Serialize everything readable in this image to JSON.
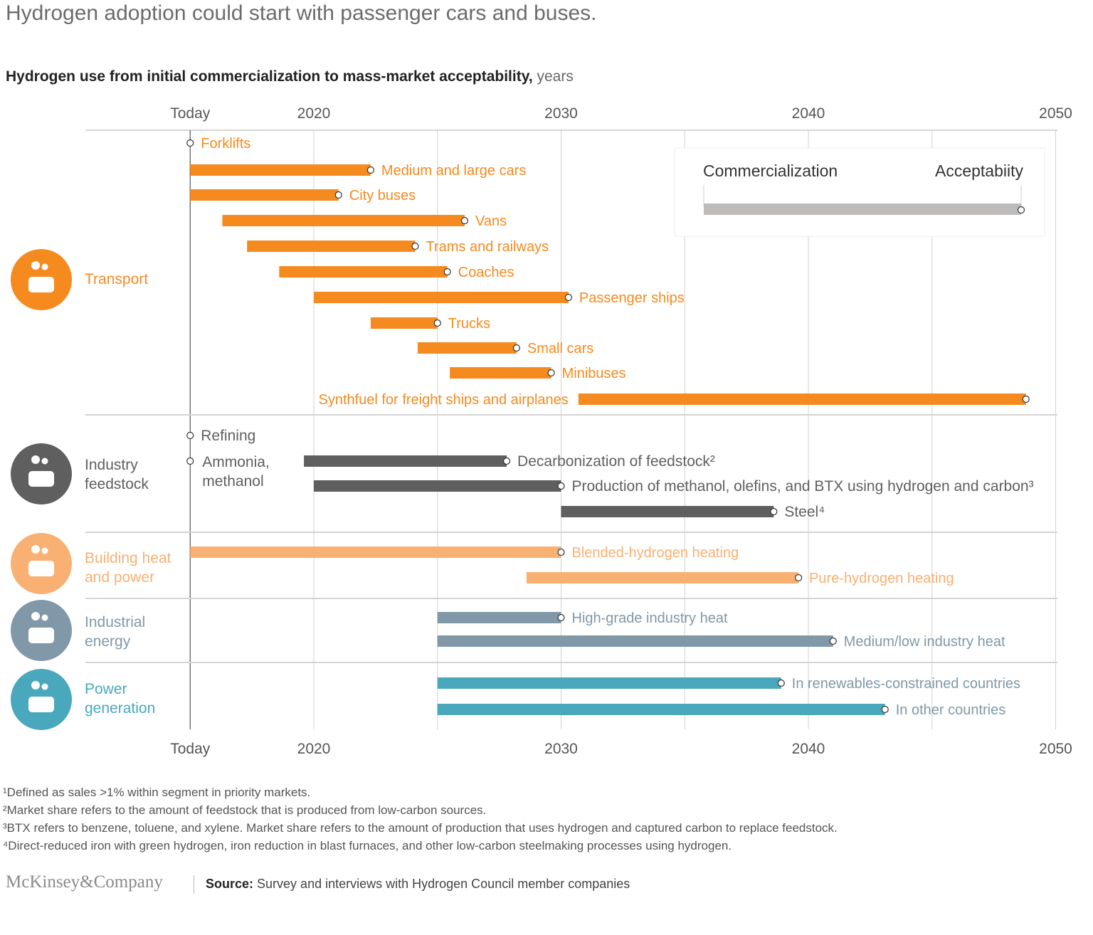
{
  "title": "Hydrogen adoption could start with passenger cars and buses.",
  "subtitle": {
    "main": "Hydrogen use from initial commercialization to mass-market acceptability,",
    "unit": " years"
  },
  "chart_data": {
    "type": "range-bar",
    "title": "Hydrogen use from initial commercialization to mass-market acceptability",
    "xlabel": "years",
    "xlim": [
      2011.5,
      2050
    ],
    "x_ticks": [
      {
        "value": 2015,
        "label": "Today"
      },
      {
        "value": 2020,
        "label": "2020"
      },
      {
        "value": 2030,
        "label": "2030"
      },
      {
        "value": 2040,
        "label": "2040"
      },
      {
        "value": 2050,
        "label": "2050"
      }
    ],
    "gridlines": [
      2020,
      2025,
      2030,
      2035,
      2040,
      2045,
      2050
    ],
    "legend": {
      "start_label": "Commercialization",
      "end_label": "Acceptabiity",
      "placement": "top-right",
      "color": "#bdbcbb"
    },
    "groups": [
      {
        "name": "Transport",
        "icon": "car-icon",
        "color": "#f58a1f",
        "text_color": "#f58a1f",
        "items": [
          {
            "label": "Forklifts",
            "start": 2015,
            "end": 2015,
            "label_pos": "right"
          },
          {
            "label": "Medium and large cars",
            "start": 2015,
            "end": 2022.3,
            "label_pos": "right"
          },
          {
            "label": "City buses",
            "start": 2015,
            "end": 2021.0,
            "label_pos": "right"
          },
          {
            "label": "Vans",
            "start": 2016.3,
            "end": 2026.1,
            "label_pos": "right"
          },
          {
            "label": "Trams and railways",
            "start": 2017.3,
            "end": 2024.1,
            "label_pos": "right"
          },
          {
            "label": "Coaches",
            "start": 2018.6,
            "end": 2025.4,
            "label_pos": "right"
          },
          {
            "label": "Passenger ships",
            "start": 2020.0,
            "end": 2030.3,
            "label_pos": "right"
          },
          {
            "label": "Trucks",
            "start": 2022.3,
            "end": 2025.0,
            "label_pos": "right"
          },
          {
            "label": "Small cars",
            "start": 2024.2,
            "end": 2028.2,
            "label_pos": "right"
          },
          {
            "label": "Minibuses",
            "start": 2025.5,
            "end": 2029.6,
            "label_pos": "right"
          },
          {
            "label": "Synthfuel for freight ships and airplanes",
            "start": 2030.7,
            "end": 2048.8,
            "label_pos": "left"
          }
        ]
      },
      {
        "name": "Industry feedstock",
        "icon": "refinery-icon",
        "color": "#5f5f5f",
        "text_color": "#5f5f5f",
        "items": [
          {
            "label": "Refining",
            "start": 2015,
            "end": 2015,
            "label_pos": "right"
          },
          {
            "label": "Ammonia, methanol",
            "start": 2015,
            "end": 2015,
            "label_pos": "right"
          },
          {
            "label": "Decarbonization of feedstock²",
            "start": 2019.6,
            "end": 2027.8,
            "label_pos": "right"
          },
          {
            "label": "Production of methanol, olefins, and BTX using hydrogen and carbon³",
            "start": 2020.0,
            "end": 2030.0,
            "label_pos": "right"
          },
          {
            "label": "Steel⁴",
            "start": 2030.0,
            "end": 2038.6,
            "label_pos": "right"
          }
        ]
      },
      {
        "name": "Building heat and power",
        "icon": "house-icon",
        "color": "#f9b073",
        "text_color": "#f9b073",
        "items": [
          {
            "label": "Blended-hydrogen heating",
            "start": 2015,
            "end": 2030.0,
            "label_pos": "right"
          },
          {
            "label": "Pure-hydrogen heating",
            "start": 2028.6,
            "end": 2039.6,
            "label_pos": "right"
          }
        ]
      },
      {
        "name": "Industrial energy",
        "icon": "factory-icon",
        "color": "#8198a8",
        "text_color": "#8198a8",
        "items": [
          {
            "label": "High-grade industry heat",
            "start": 2025.0,
            "end": 2030.0,
            "label_pos": "right"
          },
          {
            "label": "Medium/low industry heat",
            "start": 2025.0,
            "end": 2041.0,
            "label_pos": "right"
          }
        ]
      },
      {
        "name": "Power generation",
        "icon": "wind-turbine-icon",
        "color": "#4aa8bd",
        "text_color": "#4aa8bd",
        "items": [
          {
            "label": "In renewables-constrained countries",
            "start": 2025.0,
            "end": 2038.9,
            "label_pos": "right"
          },
          {
            "label": "In other countries",
            "start": 2025.0,
            "end": 2043.1,
            "label_pos": "right"
          }
        ]
      }
    ]
  },
  "footnotes": [
    "¹Defined as sales >1% within segment in priority markets.",
    "²Market share refers to the amount of feedstock that is produced from low-carbon sources.",
    "³BTX refers to benzene, toluene, and xylene. Market share refers to the amount of production that uses hydrogen and captured carbon to replace feedstock.",
    "⁴Direct-reduced iron with green hydrogen, iron reduction in blast furnaces, and other low-carbon steelmaking processes using hydrogen."
  ],
  "brand": "McKinsey&Company",
  "source": {
    "label": "Source:",
    "text": " Survey and interviews with Hydrogen Council member companies"
  }
}
